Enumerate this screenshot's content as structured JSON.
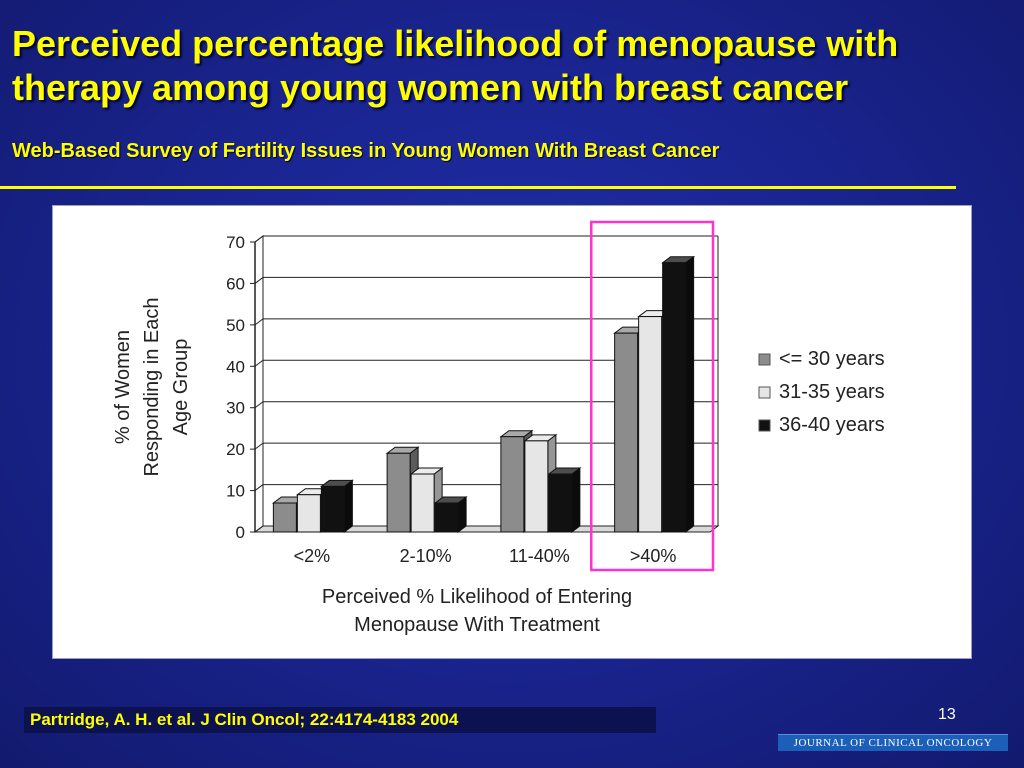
{
  "slide": {
    "title_line1": "Perceived percentage likelihood of menopause with",
    "title_line2": "therapy among young women with breast cancer",
    "subtitle": "Web-Based Survey of Fertility Issues in Young Women With Breast Cancer",
    "citation": "Partridge, A. H. et al. J Clin Oncol; 22:4174-4183 2004",
    "page_number": "13",
    "journal_logo_text": "JOURNAL OF CLINICAL ONCOLOGY"
  },
  "chart_data": {
    "type": "bar",
    "style": "3d-clustered",
    "categories": [
      "<2%",
      "2-10%",
      "11-40%",
      ">40%"
    ],
    "series": [
      {
        "name": "<= 30 years",
        "values": [
          7,
          19,
          23,
          48
        ],
        "color": "#8c8c8c"
      },
      {
        "name": "31-35 years",
        "values": [
          9,
          14,
          22,
          52
        ],
        "color": "#e6e6e6"
      },
      {
        "name": "36-40 years",
        "values": [
          11,
          7,
          14,
          65
        ],
        "color": "#111111"
      }
    ],
    "ylabel_lines": [
      "% of Women",
      "Responding in Each",
      "Age Group"
    ],
    "xlabel_lines": [
      "Perceived % Likelihood of Entering",
      "Menopause With Treatment"
    ],
    "ylim": [
      0,
      70
    ],
    "yticks": [
      0,
      10,
      20,
      30,
      40,
      50,
      60,
      70
    ],
    "grid": true,
    "legend_position": "right",
    "highlight_category": ">40%",
    "highlight_color": "#ff33cc"
  }
}
